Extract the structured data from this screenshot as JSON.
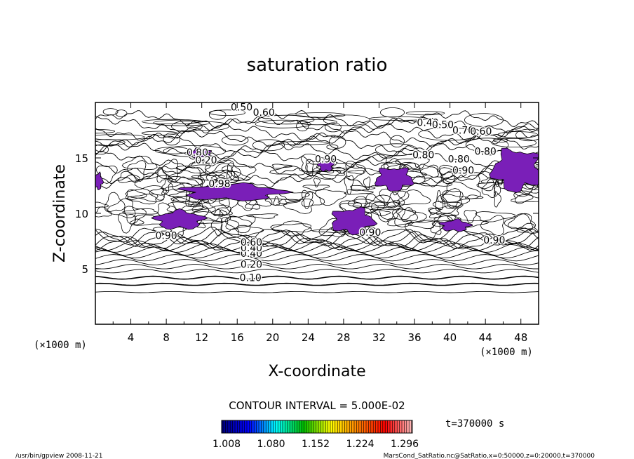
{
  "title": "saturation ratio",
  "chart_data": {
    "type": "contour",
    "title": "saturation ratio",
    "xlabel": "X-coordinate",
    "ylabel": "Z-coordinate",
    "x_unit": "(×1000 m)",
    "y_unit": "(×1000 m)",
    "xlim": [
      0,
      50
    ],
    "ylim": [
      0,
      20
    ],
    "x_ticks": [
      4,
      8,
      12,
      16,
      20,
      24,
      28,
      32,
      36,
      40,
      44,
      48
    ],
    "y_ticks": [
      5,
      10,
      15
    ],
    "contour_interval_label": "CONTOUR INTERVAL = 5.000E-02",
    "contour_labels": [
      {
        "text": "0.10",
        "x": 17.5,
        "z": 4.2
      },
      {
        "text": "0.20",
        "x": 17.6,
        "z": 5.4
      },
      {
        "text": "0.40",
        "x": 17.6,
        "z": 6.4
      },
      {
        "text": "0.40",
        "x": 17.6,
        "z": 6.9
      },
      {
        "text": "0.60",
        "x": 17.6,
        "z": 7.4
      },
      {
        "text": "0.90",
        "x": 8.0,
        "z": 8.0
      },
      {
        "text": "0.90",
        "x": 31.0,
        "z": 8.3
      },
      {
        "text": "0.90",
        "x": 45.0,
        "z": 7.6
      },
      {
        "text": "0.50",
        "x": 16.5,
        "z": 19.6
      },
      {
        "text": "0.60",
        "x": 19.0,
        "z": 19.1
      },
      {
        "text": "0.40",
        "x": 37.5,
        "z": 18.2
      },
      {
        "text": "0.50",
        "x": 39.2,
        "z": 18.0
      },
      {
        "text": "0.70",
        "x": 41.5,
        "z": 17.5
      },
      {
        "text": "0.60",
        "x": 43.5,
        "z": 17.4
      },
      {
        "text": "0.80",
        "x": 11.5,
        "z": 15.5
      },
      {
        "text": "0.20",
        "x": 12.5,
        "z": 14.8
      },
      {
        "text": "0.90",
        "x": 26.0,
        "z": 14.9
      },
      {
        "text": "0.80",
        "x": 37.0,
        "z": 15.3
      },
      {
        "text": "0.80",
        "x": 41.0,
        "z": 14.9
      },
      {
        "text": "0.80",
        "x": 44.0,
        "z": 15.6
      },
      {
        "text": "0.90",
        "x": 41.5,
        "z": 13.9
      },
      {
        "text": "0.98",
        "x": 14.0,
        "z": 12.7
      }
    ],
    "shaded_regions_ratio_gt_1": [
      {
        "x": 9.5,
        "z": 9.4,
        "rx": 2.6,
        "rz": 0.8
      },
      {
        "x": 15.5,
        "z": 11.9,
        "rx": 5.5,
        "rz": 0.7
      },
      {
        "x": 29.0,
        "z": 9.3,
        "rx": 2.3,
        "rz": 1.1
      },
      {
        "x": 33.7,
        "z": 13.1,
        "rx": 2.0,
        "rz": 1.0
      },
      {
        "x": 47.5,
        "z": 13.9,
        "rx": 2.6,
        "rz": 1.8
      },
      {
        "x": 11.8,
        "z": 15.4,
        "rx": 1.2,
        "rz": 0.4
      },
      {
        "x": 26.0,
        "z": 14.3,
        "rx": 0.8,
        "rz": 0.5
      },
      {
        "x": 40.6,
        "z": 8.9,
        "rx": 1.6,
        "rz": 0.5
      },
      {
        "x": 0.3,
        "z": 12.9,
        "rx": 0.5,
        "rz": 0.7
      }
    ],
    "colorbar": {
      "ticks": [
        "1.008",
        "1.080",
        "1.152",
        "1.224",
        "1.296"
      ],
      "colors": [
        "#000080",
        "#0000ff",
        "#00ffff",
        "#00c000",
        "#ffff00",
        "#ff8000",
        "#ff0000",
        "#ffc0c0"
      ]
    },
    "time_label": "t=370000 s"
  },
  "footer": {
    "left": "/usr/bin/gpview   2008-11-21",
    "right": "MarsCond_SatRatio.nc@SatRatio,x=0:50000,z=0:20000,t=370000"
  }
}
